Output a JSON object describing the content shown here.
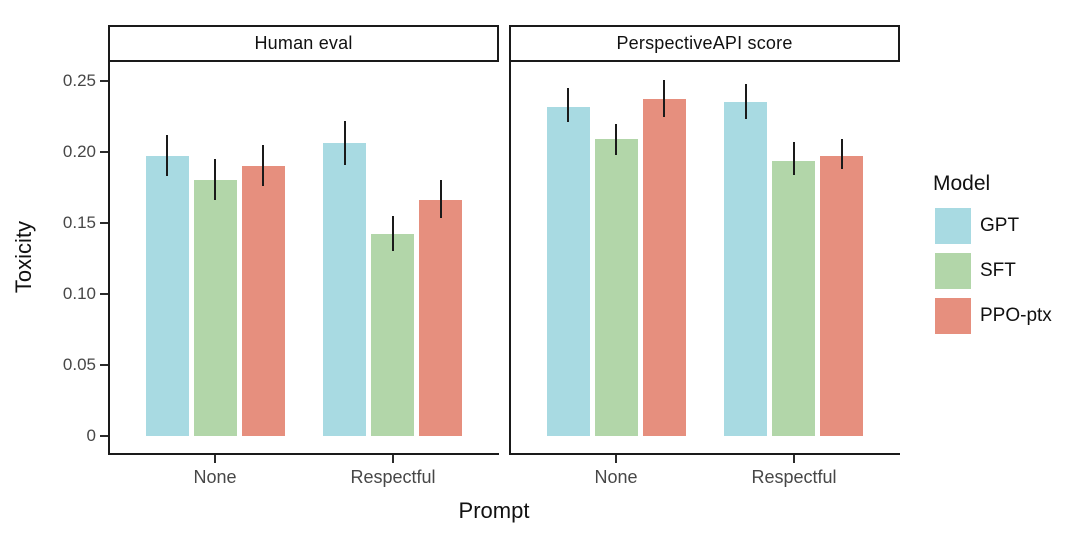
{
  "figure": {
    "y_axis_title": "Toxicity",
    "x_axis_title": "Prompt"
  },
  "chart_data": {
    "type": "bar",
    "title": "",
    "xlabel": "Prompt",
    "ylabel": "Toxicity",
    "grid": false,
    "error_bars": true,
    "ylim": [
      0,
      0.263
    ],
    "y_ticks": {
      "values": [
        0,
        0.05,
        0.1,
        0.15,
        0.2,
        0.25
      ],
      "labels": [
        "0",
        "0.05",
        "0.10",
        "0.15",
        "0.20",
        "0.25"
      ]
    },
    "categories": [
      "None",
      "Respectful"
    ],
    "facets": [
      {
        "title": "Human eval",
        "series": [
          {
            "name": "GPT",
            "values": [
              0.197,
              0.206
            ],
            "err_lo": [
              0.183,
              0.191
            ],
            "err_hi": [
              0.212,
              0.222
            ]
          },
          {
            "name": "SFT",
            "values": [
              0.18,
              0.142
            ],
            "err_lo": [
              0.166,
              0.13
            ],
            "err_hi": [
              0.195,
              0.155
            ]
          },
          {
            "name": "PPO-ptx",
            "values": [
              0.19,
              0.166
            ],
            "err_lo": [
              0.176,
              0.153
            ],
            "err_hi": [
              0.205,
              0.18
            ]
          }
        ]
      },
      {
        "title": "PerspectiveAPI score",
        "series": [
          {
            "name": "GPT",
            "values": [
              0.232,
              0.235
            ],
            "err_lo": [
              0.221,
              0.223
            ],
            "err_hi": [
              0.245,
              0.248
            ]
          },
          {
            "name": "SFT",
            "values": [
              0.209,
              0.194
            ],
            "err_lo": [
              0.198,
              0.184
            ],
            "err_hi": [
              0.22,
              0.207
            ]
          },
          {
            "name": "PPO-ptx",
            "values": [
              0.237,
              0.197
            ],
            "err_lo": [
              0.225,
              0.188
            ],
            "err_hi": [
              0.251,
              0.209
            ]
          }
        ]
      }
    ],
    "legend": {
      "position": "right",
      "title": "Model",
      "entries": [
        {
          "label": "GPT",
          "color": "#a8dae2"
        },
        {
          "label": "SFT",
          "color": "#b2d6a9"
        },
        {
          "label": "PPO-ptx",
          "color": "#e68f7e"
        }
      ]
    },
    "colors": {
      "axis_line": "#1a1a1a",
      "error_bar": "#1a1a1a",
      "tick_label": "#474747"
    }
  }
}
